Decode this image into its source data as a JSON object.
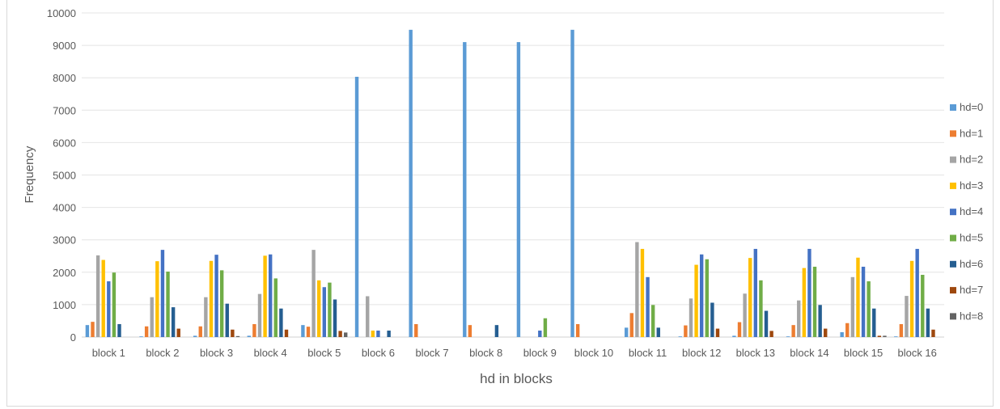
{
  "chart_data": {
    "type": "bar",
    "title": "",
    "xlabel": "hd in blocks",
    "ylabel": "Frequency",
    "ylim": [
      0,
      10000
    ],
    "yticks": [
      0,
      1000,
      2000,
      3000,
      4000,
      5000,
      6000,
      7000,
      8000,
      9000,
      10000
    ],
    "grid": true,
    "legend_position": "right",
    "categories": [
      "block 1",
      "block 2",
      "block 3",
      "block 4",
      "block 5",
      "block 6",
      "block 7",
      "block 8",
      "block 9",
      "block 10",
      "block 11",
      "block 12",
      "block 13",
      "block 14",
      "block 15",
      "block 16"
    ],
    "series": [
      {
        "name": "hd=0",
        "color": "#5b9bd5",
        "values": [
          370,
          20,
          40,
          40,
          370,
          8030,
          9480,
          9100,
          9100,
          9480,
          290,
          20,
          40,
          20,
          150,
          20
        ]
      },
      {
        "name": "hd=1",
        "color": "#ed7d31",
        "values": [
          470,
          330,
          330,
          400,
          320,
          0,
          400,
          370,
          0,
          400,
          740,
          360,
          460,
          370,
          430,
          400
        ]
      },
      {
        "name": "hd=2",
        "color": "#a5a5a5",
        "values": [
          2520,
          1230,
          1230,
          1330,
          2690,
          1260,
          0,
          0,
          0,
          0,
          2930,
          1190,
          1340,
          1130,
          1850,
          1270
        ]
      },
      {
        "name": "hd=3",
        "color": "#ffc000",
        "values": [
          2380,
          2340,
          2350,
          2510,
          1750,
          200,
          0,
          0,
          0,
          0,
          2720,
          2230,
          2440,
          2130,
          2450,
          2350
        ]
      },
      {
        "name": "hd=4",
        "color": "#4472c4",
        "values": [
          1720,
          2690,
          2540,
          2550,
          1540,
          200,
          0,
          0,
          200,
          0,
          1850,
          2550,
          2720,
          2720,
          2170,
          2720
        ]
      },
      {
        "name": "hd=5",
        "color": "#70ad47",
        "values": [
          1990,
          2020,
          2060,
          1810,
          1680,
          0,
          0,
          0,
          580,
          0,
          990,
          2400,
          1750,
          2170,
          1720,
          1920
        ]
      },
      {
        "name": "hd=6",
        "color": "#255e91",
        "values": [
          400,
          920,
          1030,
          880,
          1160,
          200,
          0,
          370,
          0,
          0,
          290,
          1060,
          810,
          990,
          880,
          880
        ]
      },
      {
        "name": "hd=7",
        "color": "#9e480e",
        "values": [
          0,
          260,
          230,
          230,
          190,
          0,
          0,
          0,
          0,
          0,
          0,
          260,
          190,
          260,
          40,
          230
        ]
      },
      {
        "name": "hd=8",
        "color": "#636363",
        "values": [
          0,
          0,
          30,
          0,
          140,
          0,
          0,
          0,
          0,
          0,
          0,
          0,
          0,
          0,
          40,
          0
        ]
      }
    ]
  }
}
